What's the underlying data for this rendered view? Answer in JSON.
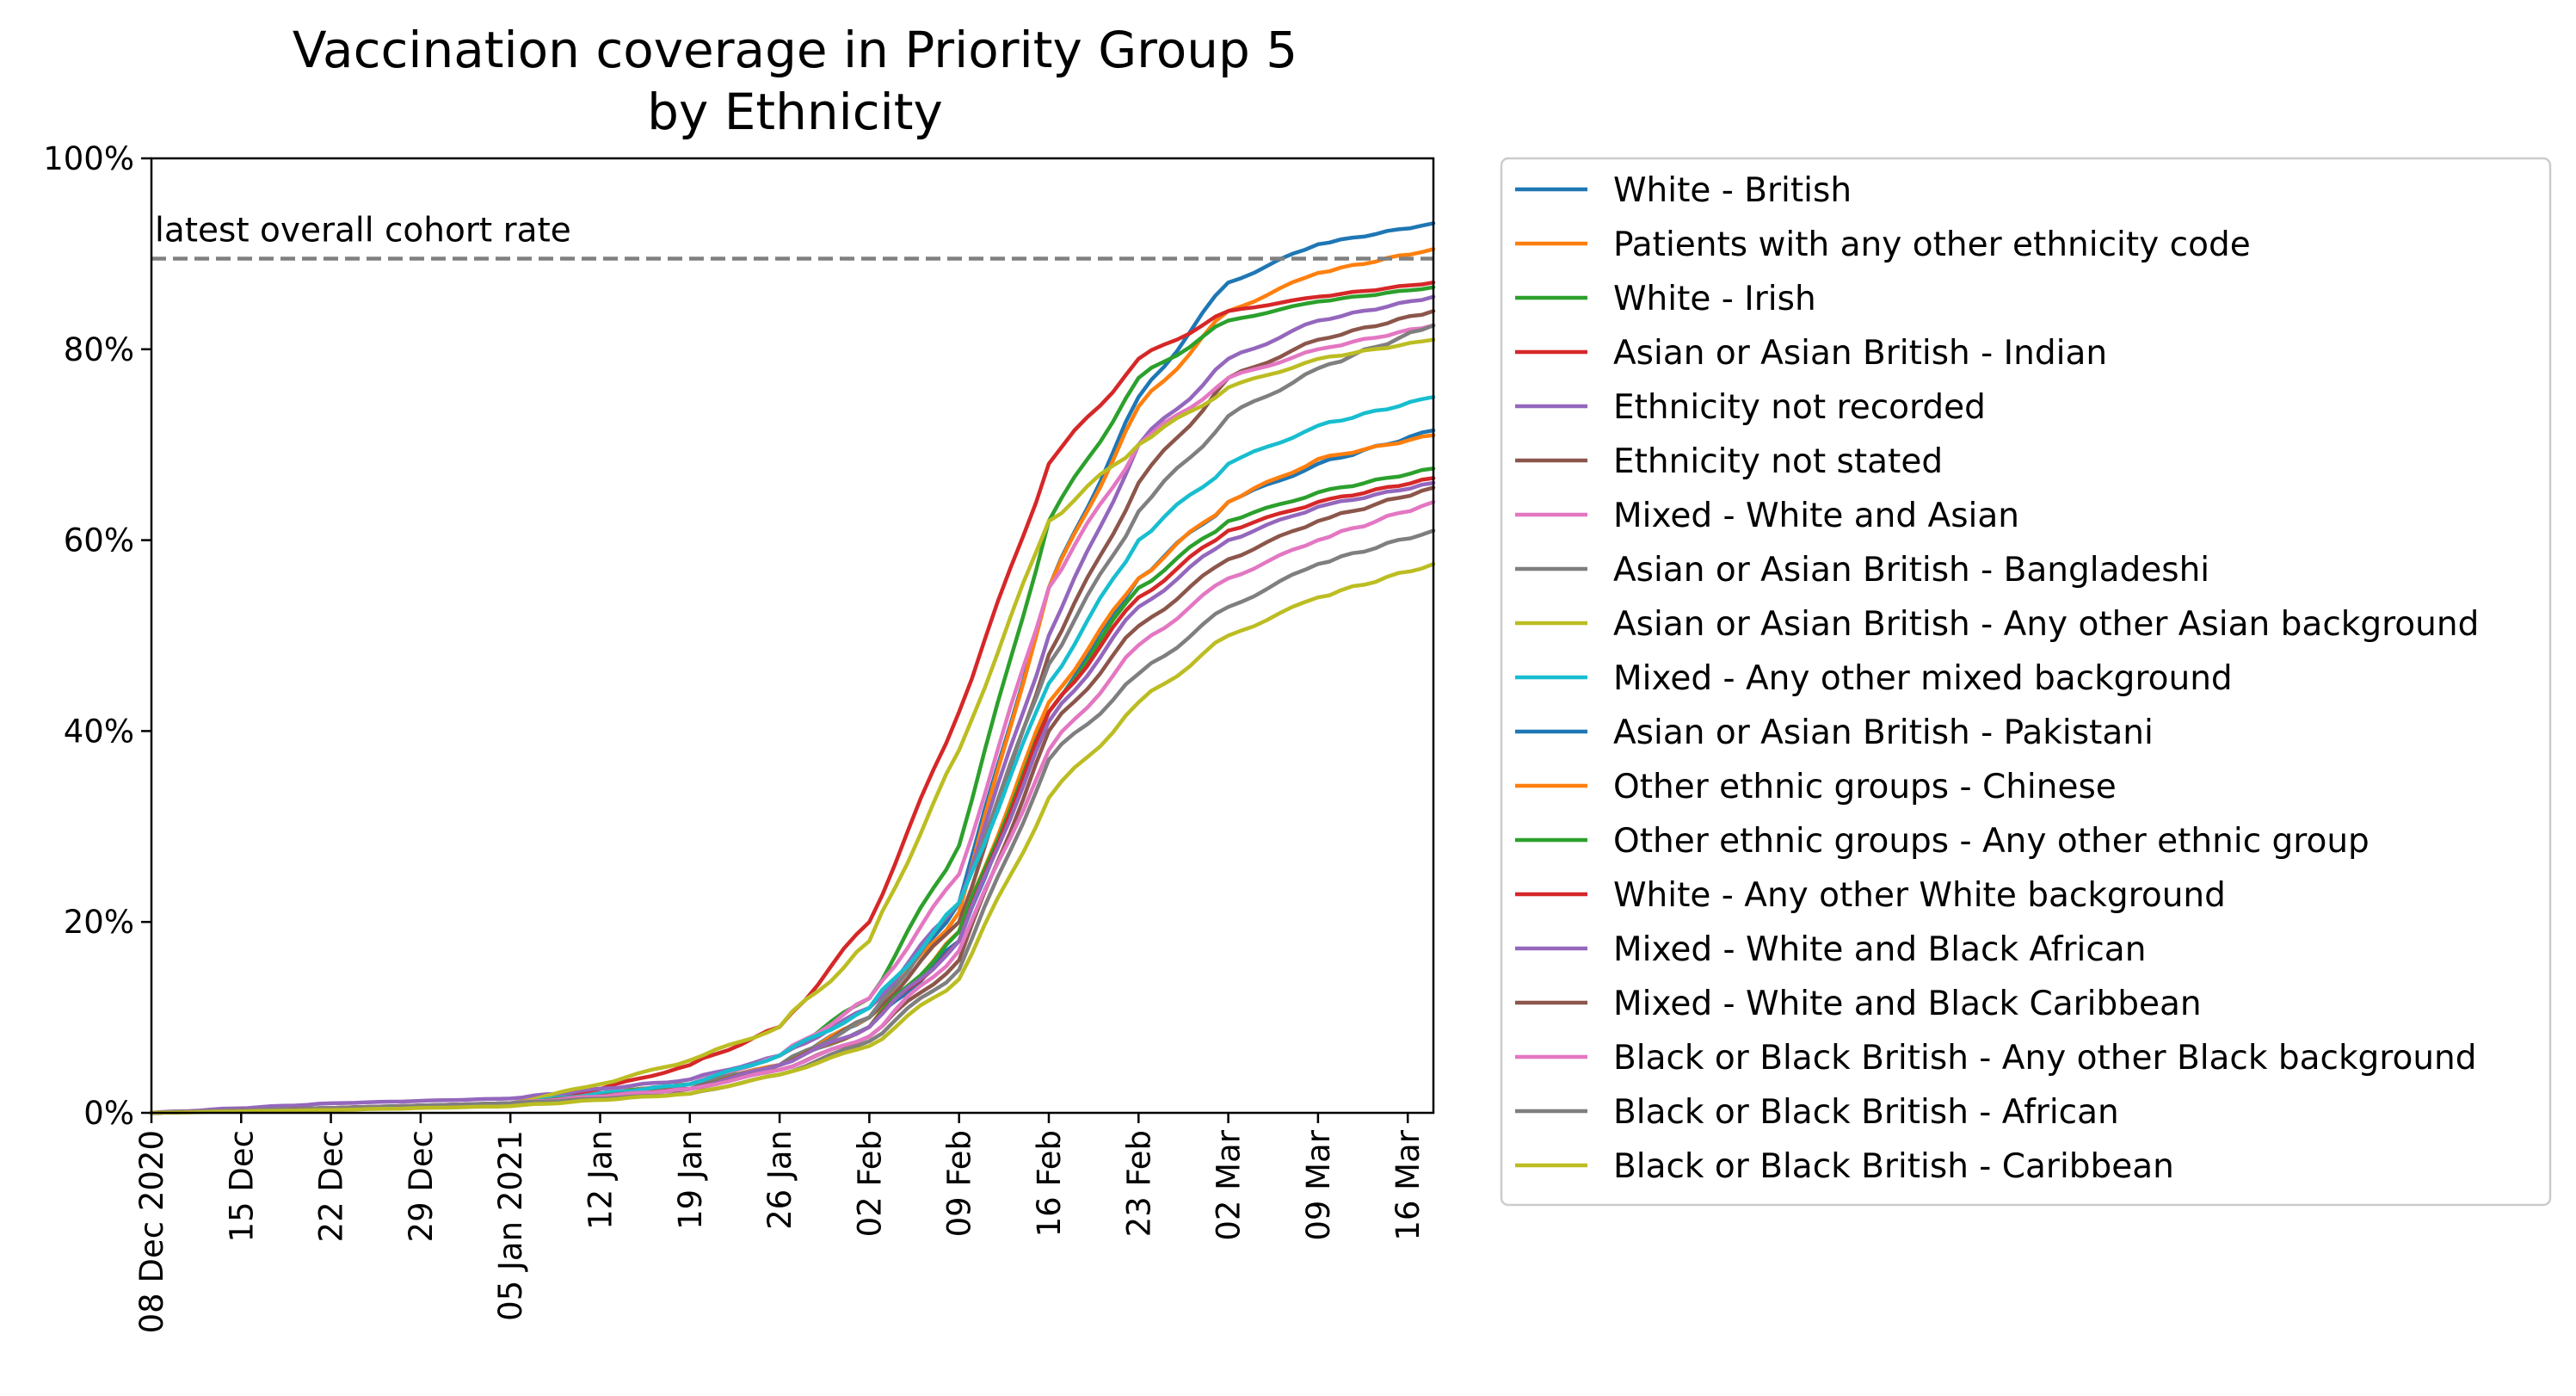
{
  "chart_data": {
    "type": "line",
    "title": [
      "Vaccination coverage in Priority Group 5",
      "by Ethnicity"
    ],
    "xlabel": "",
    "ylabel": "",
    "x_start": "2020-12-08",
    "x_end": "2021-03-18",
    "xlim": [
      "2020-12-08",
      "2021-03-18"
    ],
    "ylim": [
      0,
      100
    ],
    "y_ticks": [
      0,
      20,
      40,
      60,
      80,
      100
    ],
    "y_tick_labels": [
      "0%",
      "20%",
      "40%",
      "60%",
      "80%",
      "100%"
    ],
    "x_tick_dates": [
      "2020-12-08",
      "2020-12-15",
      "2020-12-22",
      "2020-12-29",
      "2021-01-05",
      "2021-01-12",
      "2021-01-19",
      "2021-01-26",
      "2021-02-02",
      "2021-02-09",
      "2021-02-16",
      "2021-02-23",
      "2021-03-02",
      "2021-03-09",
      "2021-03-16"
    ],
    "x_tick_labels": [
      "08 Dec 2020",
      "15 Dec",
      "22 Dec",
      "29 Dec",
      "05 Jan 2021",
      "12 Jan",
      "19 Jan",
      "26 Jan",
      "02 Feb",
      "09 Feb",
      "16 Feb",
      "23 Feb",
      "02 Mar",
      "09 Mar",
      "16 Mar"
    ],
    "grid": false,
    "legend_position": "outside-right",
    "reference_line": {
      "label": "latest overall cohort rate",
      "value": 89.5,
      "color": "#808080"
    },
    "series": [
      {
        "name": "White - British",
        "color": "#1f77b4",
        "points": [
          [
            "2020-12-08",
            0
          ],
          [
            "2020-12-22",
            0.5
          ],
          [
            "2021-01-05",
            1
          ],
          [
            "2021-01-19",
            3
          ],
          [
            "2021-01-26",
            5
          ],
          [
            "2021-02-02",
            10
          ],
          [
            "2021-02-09",
            22
          ],
          [
            "2021-02-16",
            55
          ],
          [
            "2021-02-23",
            75
          ],
          [
            "2021-03-02",
            87
          ],
          [
            "2021-03-09",
            91
          ],
          [
            "2021-03-18",
            93.2
          ]
        ]
      },
      {
        "name": "Patients with any other ethnicity code",
        "color": "#ff7f0e",
        "points": [
          [
            "2020-12-08",
            0
          ],
          [
            "2020-12-22",
            0.5
          ],
          [
            "2021-01-05",
            1
          ],
          [
            "2021-01-19",
            3
          ],
          [
            "2021-01-26",
            5
          ],
          [
            "2021-02-02",
            10
          ],
          [
            "2021-02-09",
            21
          ],
          [
            "2021-02-16",
            55
          ],
          [
            "2021-02-23",
            74
          ],
          [
            "2021-03-02",
            84
          ],
          [
            "2021-03-09",
            88
          ],
          [
            "2021-03-18",
            90.5
          ]
        ]
      },
      {
        "name": "White - Irish",
        "color": "#2ca02c",
        "points": [
          [
            "2020-12-08",
            0
          ],
          [
            "2020-12-22",
            0.5
          ],
          [
            "2021-01-05",
            1
          ],
          [
            "2021-01-19",
            3
          ],
          [
            "2021-01-26",
            6
          ],
          [
            "2021-02-02",
            12
          ],
          [
            "2021-02-09",
            28
          ],
          [
            "2021-02-16",
            62
          ],
          [
            "2021-02-23",
            77
          ],
          [
            "2021-03-02",
            83
          ],
          [
            "2021-03-09",
            85
          ],
          [
            "2021-03-18",
            86.5
          ]
        ]
      },
      {
        "name": "Asian or Asian British - Indian",
        "color": "#d62728",
        "points": [
          [
            "2020-12-08",
            0
          ],
          [
            "2020-12-22",
            0.5
          ],
          [
            "2021-01-05",
            1
          ],
          [
            "2021-01-12",
            2.5
          ],
          [
            "2021-01-19",
            5
          ],
          [
            "2021-01-26",
            9
          ],
          [
            "2021-02-02",
            20
          ],
          [
            "2021-02-09",
            42
          ],
          [
            "2021-02-16",
            68
          ],
          [
            "2021-02-23",
            79
          ],
          [
            "2021-03-02",
            84
          ],
          [
            "2021-03-09",
            85.5
          ],
          [
            "2021-03-18",
            87
          ]
        ]
      },
      {
        "name": "Ethnicity not recorded",
        "color": "#9467bd",
        "points": [
          [
            "2020-12-08",
            0
          ],
          [
            "2020-12-22",
            1
          ],
          [
            "2021-01-05",
            1.5
          ],
          [
            "2021-01-19",
            3.5
          ],
          [
            "2021-01-26",
            6
          ],
          [
            "2021-02-02",
            11
          ],
          [
            "2021-02-09",
            22
          ],
          [
            "2021-02-16",
            50
          ],
          [
            "2021-02-23",
            70
          ],
          [
            "2021-03-02",
            79
          ],
          [
            "2021-03-09",
            83
          ],
          [
            "2021-03-18",
            85.5
          ]
        ]
      },
      {
        "name": "Ethnicity not stated",
        "color": "#8c564b",
        "points": [
          [
            "2020-12-08",
            0
          ],
          [
            "2020-12-22",
            0.5
          ],
          [
            "2021-01-05",
            1
          ],
          [
            "2021-01-19",
            2.5
          ],
          [
            "2021-01-26",
            5
          ],
          [
            "2021-02-02",
            10
          ],
          [
            "2021-02-09",
            20
          ],
          [
            "2021-02-16",
            48
          ],
          [
            "2021-02-23",
            66
          ],
          [
            "2021-03-02",
            77
          ],
          [
            "2021-03-09",
            81
          ],
          [
            "2021-03-18",
            84
          ]
        ]
      },
      {
        "name": "Mixed - White and Asian",
        "color": "#e377c2",
        "points": [
          [
            "2020-12-08",
            0
          ],
          [
            "2020-12-22",
            0.5
          ],
          [
            "2021-01-05",
            1
          ],
          [
            "2021-01-19",
            3
          ],
          [
            "2021-01-26",
            6
          ],
          [
            "2021-02-02",
            12
          ],
          [
            "2021-02-09",
            25
          ],
          [
            "2021-02-16",
            55
          ],
          [
            "2021-02-23",
            70
          ],
          [
            "2021-03-02",
            77
          ],
          [
            "2021-03-09",
            80
          ],
          [
            "2021-03-18",
            82.5
          ]
        ]
      },
      {
        "name": "Asian or Asian British - Bangladeshi",
        "color": "#7f7f7f",
        "points": [
          [
            "2020-12-08",
            0
          ],
          [
            "2020-12-22",
            0.5
          ],
          [
            "2021-01-05",
            1
          ],
          [
            "2021-01-19",
            3
          ],
          [
            "2021-01-26",
            5
          ],
          [
            "2021-02-02",
            10
          ],
          [
            "2021-02-09",
            22
          ],
          [
            "2021-02-16",
            47
          ],
          [
            "2021-02-23",
            63
          ],
          [
            "2021-03-02",
            73
          ],
          [
            "2021-03-09",
            78
          ],
          [
            "2021-03-18",
            82.5
          ]
        ]
      },
      {
        "name": "Asian or Asian British - Any other Asian background",
        "color": "#bcbd22",
        "points": [
          [
            "2020-12-08",
            0
          ],
          [
            "2020-12-22",
            0.5
          ],
          [
            "2021-01-05",
            1
          ],
          [
            "2021-01-12",
            3
          ],
          [
            "2021-01-19",
            5.5
          ],
          [
            "2021-01-26",
            9
          ],
          [
            "2021-02-02",
            18
          ],
          [
            "2021-02-09",
            38
          ],
          [
            "2021-02-16",
            62
          ],
          [
            "2021-02-23",
            70
          ],
          [
            "2021-03-02",
            76
          ],
          [
            "2021-03-09",
            79
          ],
          [
            "2021-03-18",
            81
          ]
        ]
      },
      {
        "name": "Mixed - Any other mixed background",
        "color": "#17becf",
        "points": [
          [
            "2020-12-08",
            0
          ],
          [
            "2020-12-22",
            0.5
          ],
          [
            "2021-01-05",
            1
          ],
          [
            "2021-01-19",
            3
          ],
          [
            "2021-01-26",
            6
          ],
          [
            "2021-02-02",
            11
          ],
          [
            "2021-02-09",
            22
          ],
          [
            "2021-02-16",
            45
          ],
          [
            "2021-02-23",
            60
          ],
          [
            "2021-03-02",
            68
          ],
          [
            "2021-03-09",
            72
          ],
          [
            "2021-03-18",
            75
          ]
        ]
      },
      {
        "name": "Asian or Asian British - Pakistani",
        "color": "#1f77b4",
        "points": [
          [
            "2020-12-08",
            0
          ],
          [
            "2020-12-22",
            0.5
          ],
          [
            "2021-01-05",
            1
          ],
          [
            "2021-01-19",
            2.5
          ],
          [
            "2021-01-26",
            5
          ],
          [
            "2021-02-02",
            9
          ],
          [
            "2021-02-09",
            18
          ],
          [
            "2021-02-16",
            42
          ],
          [
            "2021-02-23",
            56
          ],
          [
            "2021-03-02",
            64
          ],
          [
            "2021-03-09",
            68
          ],
          [
            "2021-03-18",
            71.5
          ]
        ]
      },
      {
        "name": "Other ethnic groups - Chinese",
        "color": "#ff7f0e",
        "points": [
          [
            "2020-12-08",
            0
          ],
          [
            "2020-12-22",
            0.5
          ],
          [
            "2021-01-05",
            1
          ],
          [
            "2021-01-19",
            2.5
          ],
          [
            "2021-01-26",
            5
          ],
          [
            "2021-02-02",
            9
          ],
          [
            "2021-02-09",
            19
          ],
          [
            "2021-02-16",
            43
          ],
          [
            "2021-02-23",
            56
          ],
          [
            "2021-03-02",
            64
          ],
          [
            "2021-03-09",
            68.5
          ],
          [
            "2021-03-18",
            71
          ]
        ]
      },
      {
        "name": "Other ethnic groups - Any other ethnic group",
        "color": "#2ca02c",
        "points": [
          [
            "2020-12-08",
            0
          ],
          [
            "2020-12-22",
            0.5
          ],
          [
            "2021-01-05",
            1
          ],
          [
            "2021-01-19",
            2.5
          ],
          [
            "2021-01-26",
            5
          ],
          [
            "2021-02-02",
            9
          ],
          [
            "2021-02-09",
            19
          ],
          [
            "2021-02-16",
            42
          ],
          [
            "2021-02-23",
            55
          ],
          [
            "2021-03-02",
            62
          ],
          [
            "2021-03-09",
            65
          ],
          [
            "2021-03-18",
            67.5
          ]
        ]
      },
      {
        "name": "White - Any other White background",
        "color": "#d62728",
        "points": [
          [
            "2020-12-08",
            0
          ],
          [
            "2020-12-22",
            0.5
          ],
          [
            "2021-01-05",
            1
          ],
          [
            "2021-01-19",
            2.5
          ],
          [
            "2021-01-26",
            5
          ],
          [
            "2021-02-02",
            9
          ],
          [
            "2021-02-09",
            18
          ],
          [
            "2021-02-16",
            42
          ],
          [
            "2021-02-23",
            54
          ],
          [
            "2021-03-02",
            61
          ],
          [
            "2021-03-09",
            64
          ],
          [
            "2021-03-18",
            66.5
          ]
        ]
      },
      {
        "name": "Mixed - White and Black African",
        "color": "#9467bd",
        "points": [
          [
            "2020-12-08",
            0
          ],
          [
            "2020-12-22",
            0.5
          ],
          [
            "2021-01-05",
            1
          ],
          [
            "2021-01-19",
            2.5
          ],
          [
            "2021-01-26",
            5
          ],
          [
            "2021-02-02",
            9
          ],
          [
            "2021-02-09",
            18
          ],
          [
            "2021-02-16",
            41
          ],
          [
            "2021-02-23",
            53
          ],
          [
            "2021-03-02",
            60
          ],
          [
            "2021-03-09",
            63.5
          ],
          [
            "2021-03-18",
            66
          ]
        ]
      },
      {
        "name": "Mixed - White and Black Caribbean",
        "color": "#8c564b",
        "points": [
          [
            "2020-12-08",
            0
          ],
          [
            "2020-12-22",
            0.5
          ],
          [
            "2021-01-05",
            1
          ],
          [
            "2021-01-19",
            2.5
          ],
          [
            "2021-01-26",
            4.5
          ],
          [
            "2021-02-02",
            8
          ],
          [
            "2021-02-09",
            16
          ],
          [
            "2021-02-16",
            40
          ],
          [
            "2021-02-23",
            51
          ],
          [
            "2021-03-02",
            58
          ],
          [
            "2021-03-09",
            62
          ],
          [
            "2021-03-18",
            65.5
          ]
        ]
      },
      {
        "name": "Black or Black British - Any other Black background",
        "color": "#e377c2",
        "points": [
          [
            "2020-12-08",
            0
          ],
          [
            "2020-12-22",
            0.5
          ],
          [
            "2021-01-05",
            1
          ],
          [
            "2021-01-19",
            2.5
          ],
          [
            "2021-01-26",
            4.5
          ],
          [
            "2021-02-02",
            8
          ],
          [
            "2021-02-09",
            17
          ],
          [
            "2021-02-16",
            38
          ],
          [
            "2021-02-23",
            49
          ],
          [
            "2021-03-02",
            56
          ],
          [
            "2021-03-09",
            60
          ],
          [
            "2021-03-18",
            64
          ]
        ]
      },
      {
        "name": "Black or Black British - African",
        "color": "#7f7f7f",
        "points": [
          [
            "2020-12-08",
            0
          ],
          [
            "2020-12-22",
            0.5
          ],
          [
            "2021-01-05",
            1
          ],
          [
            "2021-01-19",
            2
          ],
          [
            "2021-01-26",
            4
          ],
          [
            "2021-02-02",
            7.5
          ],
          [
            "2021-02-09",
            15
          ],
          [
            "2021-02-16",
            37
          ],
          [
            "2021-02-23",
            46
          ],
          [
            "2021-03-02",
            53
          ],
          [
            "2021-03-09",
            57.5
          ],
          [
            "2021-03-18",
            61
          ]
        ]
      },
      {
        "name": "Black or Black British - Caribbean",
        "color": "#bcbd22",
        "points": [
          [
            "2020-12-08",
            0
          ],
          [
            "2020-12-22",
            0.3
          ],
          [
            "2021-01-05",
            0.7
          ],
          [
            "2021-01-19",
            2
          ],
          [
            "2021-01-26",
            4
          ],
          [
            "2021-02-02",
            7
          ],
          [
            "2021-02-09",
            14
          ],
          [
            "2021-02-16",
            33
          ],
          [
            "2021-02-23",
            43
          ],
          [
            "2021-03-02",
            50
          ],
          [
            "2021-03-09",
            54
          ],
          [
            "2021-03-18",
            57.5
          ]
        ]
      }
    ]
  }
}
